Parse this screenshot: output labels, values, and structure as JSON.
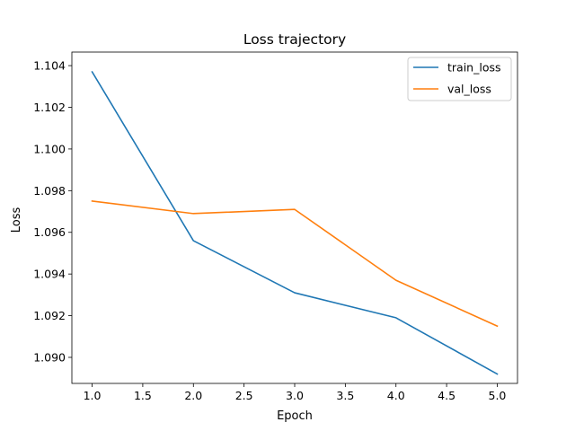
{
  "chart_data": {
    "type": "line",
    "title": "Loss trajectory",
    "xlabel": "Epoch",
    "ylabel": "Loss",
    "x": [
      1.0,
      2.0,
      3.0,
      4.0,
      5.0
    ],
    "xlim": [
      0.8,
      5.2
    ],
    "ylim": [
      1.08875,
      1.10465
    ],
    "xticks": [
      1.0,
      1.5,
      2.0,
      2.5,
      3.0,
      3.5,
      4.0,
      4.5,
      5.0
    ],
    "xtick_labels": [
      "1.0",
      "1.5",
      "2.0",
      "2.5",
      "3.0",
      "3.5",
      "4.0",
      "4.5",
      "5.0"
    ],
    "yticks": [
      1.09,
      1.092,
      1.094,
      1.096,
      1.098,
      1.1,
      1.102,
      1.104
    ],
    "ytick_labels": [
      "1.090",
      "1.092",
      "1.094",
      "1.096",
      "1.098",
      "1.100",
      "1.102",
      "1.104"
    ],
    "grid": false,
    "legend_position": "top-right",
    "series": [
      {
        "name": "train_loss",
        "color": "#1f77b4",
        "values": [
          1.1037,
          1.0956,
          1.0931,
          1.0919,
          1.0892
        ]
      },
      {
        "name": "val_loss",
        "color": "#ff7f0e",
        "values": [
          1.0975,
          1.0969,
          1.0971,
          1.0937,
          1.0915
        ]
      }
    ]
  }
}
